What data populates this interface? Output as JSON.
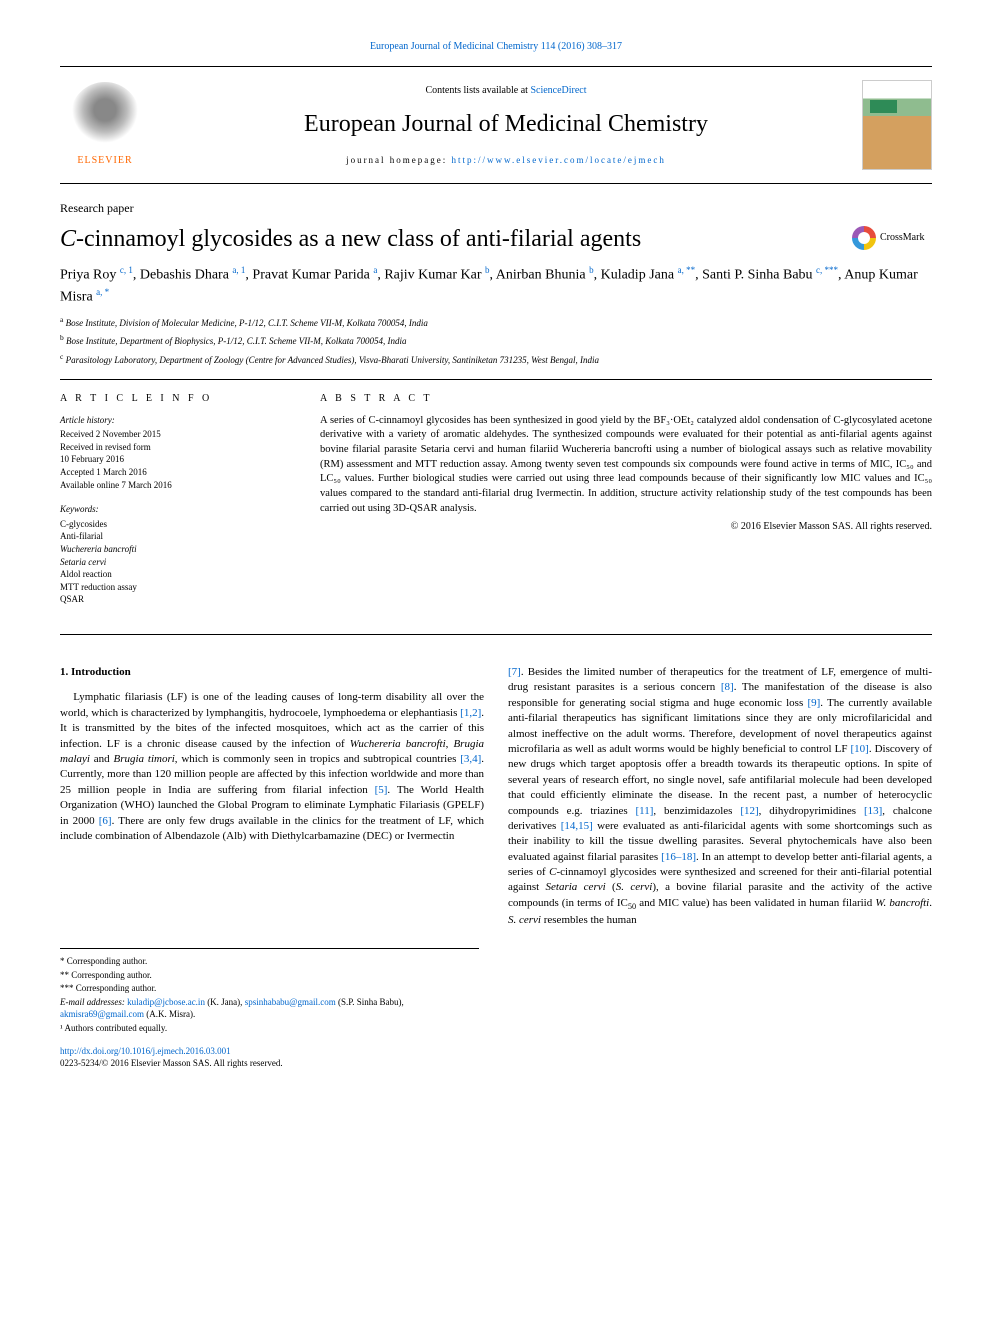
{
  "top_link": "European Journal of Medicinal Chemistry 114 (2016) 308–317",
  "header": {
    "contents_prefix": "Contents lists available at ",
    "contents_link": "ScienceDirect",
    "journal_name": "European Journal of Medicinal Chemistry",
    "homepage_prefix": "journal homepage: ",
    "homepage_link": "http://www.elsevier.com/locate/ejmech",
    "elsevier_label": "ELSEVIER"
  },
  "crossmark_label": "CrossMark",
  "article_type": "Research paper",
  "title_prefix_italic": "C",
  "title_rest": "-cinnamoyl glycosides as a new class of anti-filarial agents",
  "authors_html": "Priya Roy <sup>c, 1</sup>, Debashis Dhara <sup>a, 1</sup>, Pravat Kumar Parida <sup>a</sup>, Rajiv Kumar Kar <sup>b</sup>, Anirban Bhunia <sup>b</sup>, Kuladip Jana <sup>a, **</sup>, Santi P. Sinha Babu <sup>c, ***</sup>, Anup Kumar Misra <sup>a, *</sup>",
  "affiliations": [
    {
      "sup": "a",
      "text": " Bose Institute, Division of Molecular Medicine, P-1/12, C.I.T. Scheme VII-M, Kolkata 700054, India"
    },
    {
      "sup": "b",
      "text": " Bose Institute, Department of Biophysics, P-1/12, C.I.T. Scheme VII-M, Kolkata 700054, India"
    },
    {
      "sup": "c",
      "text": " Parasitology Laboratory, Department of Zoology (Centre for Advanced Studies), Visva-Bharati University, Santiniketan 731235, West Bengal, India"
    }
  ],
  "article_info": {
    "label": "A R T I C L E   I N F O",
    "history_heading": "Article history:",
    "history": [
      "Received 2 November 2015",
      "Received in revised form",
      "10 February 2016",
      "Accepted 1 March 2016",
      "Available online 7 March 2016"
    ],
    "keywords_heading": "Keywords:",
    "keywords": [
      "C-glycosides",
      "Anti-filarial",
      "Wuchereria bancrofti",
      "Setaria cervi",
      "Aldol reaction",
      "MTT reduction assay",
      "QSAR"
    ]
  },
  "abstract": {
    "label": "A B S T R A C T",
    "text": "A series of C-cinnamoyl glycosides has been synthesized in good yield by the BF₃·OEt₂ catalyzed aldol condensation of C-glycosylated acetone derivative with a variety of aromatic aldehydes. The synthesized compounds were evaluated for their potential as anti-filarial agents against bovine filarial parasite Setaria cervi and human filariid Wuchereria bancrofti using a number of biological assays such as relative movability (RM) assessment and MTT reduction assay. Among twenty seven test compounds six compounds were found active in terms of MIC, IC₅₀ and LC₅₀ values. Further biological studies were carried out using three lead compounds because of their significantly low MIC values and IC₅₀ values compared to the standard anti-filarial drug Ivermectin. In addition, structure activity relationship study of the test compounds has been carried out using 3D-QSAR analysis.",
    "copyright": "© 2016 Elsevier Masson SAS. All rights reserved."
  },
  "intro_heading": "1. Introduction",
  "col1_html": "Lymphatic filariasis (LF) is one of the leading causes of long-term disability all over the world, which is characterized by lymphangitis, hydrocoele, lymphoedema or elephantiasis <span class='ref'>[1,2]</span>. It is transmitted by the bites of the infected mosquitoes, which act as the carrier of this infection. LF is a chronic disease caused by the infection of <span class='ital'>Wuchereria bancrofti</span>, <span class='ital'>Brugia malayi</span> and <span class='ital'>Brugia timori</span>, which is commonly seen in tropics and subtropical countries <span class='ref'>[3,4]</span>. Currently, more than 120 million people are affected by this infection worldwide and more than 25 million people in India are suffering from filarial infection <span class='ref'>[5]</span>. The World Health Organization (WHO) launched the Global Program to eliminate Lymphatic Filariasis (GPELF) in 2000 <span class='ref'>[6]</span>. There are only few drugs available in the clinics for the treatment of LF, which include combination of Albendazole (Alb) with Diethylcarbamazine (DEC) or Ivermectin",
  "col2_html": "<span class='ref'>[7]</span>. Besides the limited number of therapeutics for the treatment of LF, emergence of multi-drug resistant parasites is a serious concern <span class='ref'>[8]</span>. The manifestation of the disease is also responsible for generating social stigma and huge economic loss <span class='ref'>[9]</span>. The currently available anti-filarial therapeutics has significant limitations since they are only microfilaricidal and almost ineffective on the adult worms. Therefore, development of novel therapeutics against microfilaria as well as adult worms would be highly beneficial to control LF <span class='ref'>[10]</span>. Discovery of new drugs which target apoptosis offer a breadth towards its therapeutic options. In spite of several years of research effort, no single novel, safe antifilarial molecule had been developed that could efficiently eliminate the disease. In the recent past, a number of heterocyclic compounds e.g. triazines <span class='ref'>[11]</span>, benzimidazoles <span class='ref'>[12]</span>, dihydropyrimidines <span class='ref'>[13]</span>, chalcone derivatives <span class='ref'>[14,15]</span> were evaluated as anti-filaricidal agents with some shortcomings such as their inability to kill the tissue dwelling parasites. Several phytochemicals have also been evaluated against filarial parasites <span class='ref'>[16–18]</span>. In an attempt to develop better anti-filarial agents, a series of <span class='ital'>C</span>-cinnamoyl glycosides were synthesized and screened for their anti-filarial potential against <span class='ital'>Setaria cervi</span> (<span class='ital'>S. cervi</span>), a bovine filarial parasite and the activity of the active compounds (in terms of IC<sub>50</sub> and MIC value) has been validated in human filariid <span class='ital'>W. bancrofti</span>. <span class='ital'>S. cervi</span> resembles the human",
  "footnotes": {
    "corr": [
      "* Corresponding author.",
      "** Corresponding author.",
      "*** Corresponding author."
    ],
    "email_label": "E-mail addresses: ",
    "emails_html": "<a>kuladip@jcbose.ac.in</a> (K. Jana), <a>spsinhababu@gmail.com</a> (S.P. Sinha Babu), <a>akmisra69@gmail.com</a> (A.K. Misra).",
    "equal": "¹ Authors contributed equally."
  },
  "doi": {
    "link": "http://dx.doi.org/10.1016/j.ejmech.2016.03.001",
    "rights": "0223-5234/© 2016 Elsevier Masson SAS. All rights reserved."
  },
  "colors": {
    "link": "#0066cc",
    "elsevier_orange": "#ff6600",
    "text": "#000000",
    "bg": "#ffffff"
  }
}
